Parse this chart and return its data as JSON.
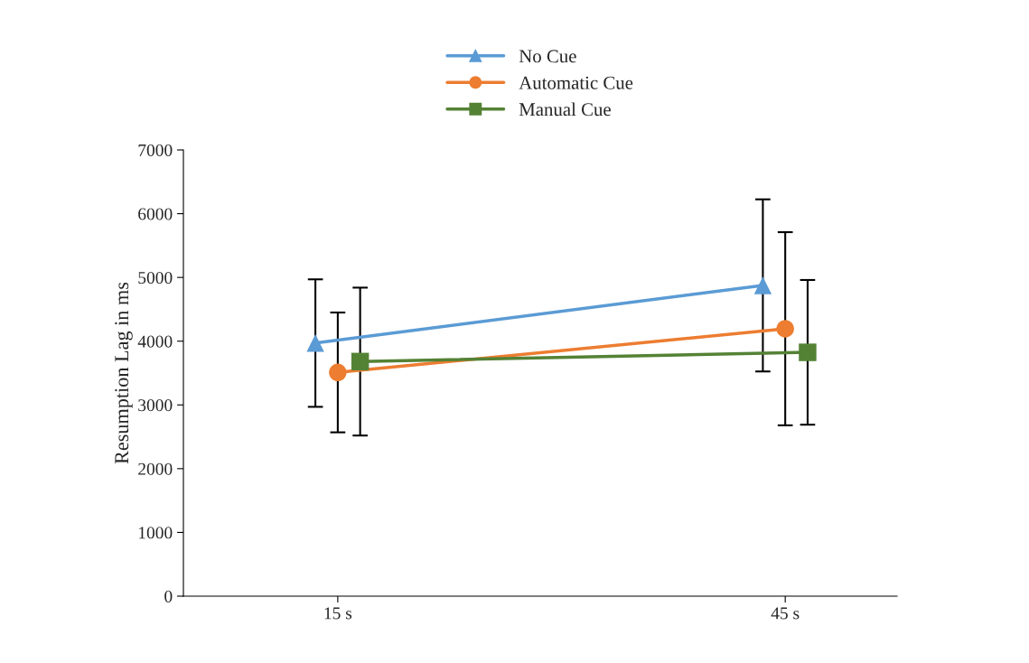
{
  "chart_data": {
    "type": "line",
    "ylabel": "Resumption Lag in ms",
    "categories": [
      "15 s",
      "45 s"
    ],
    "series": [
      {
        "name": "No Cue",
        "color": "#5b9bd5",
        "values": [
          3970,
          4875
        ],
        "errors": [
          1000,
          1350
        ],
        "marker": "triangle"
      },
      {
        "name": "Automatic Cue",
        "color": "#ed7d31",
        "values": [
          3510,
          4195
        ],
        "errors": [
          940,
          1515
        ],
        "marker": "circle"
      },
      {
        "name": "Manual Cue",
        "color": "#548235",
        "values": [
          3680,
          3825
        ],
        "errors": [
          1160,
          1135
        ],
        "marker": "square"
      }
    ],
    "ylim": [
      0,
      7000
    ],
    "yticks": [
      0,
      1000,
      2000,
      3000,
      4000,
      5000,
      6000,
      7000
    ],
    "grid": false,
    "legend": "top",
    "line_style": "solid"
  }
}
